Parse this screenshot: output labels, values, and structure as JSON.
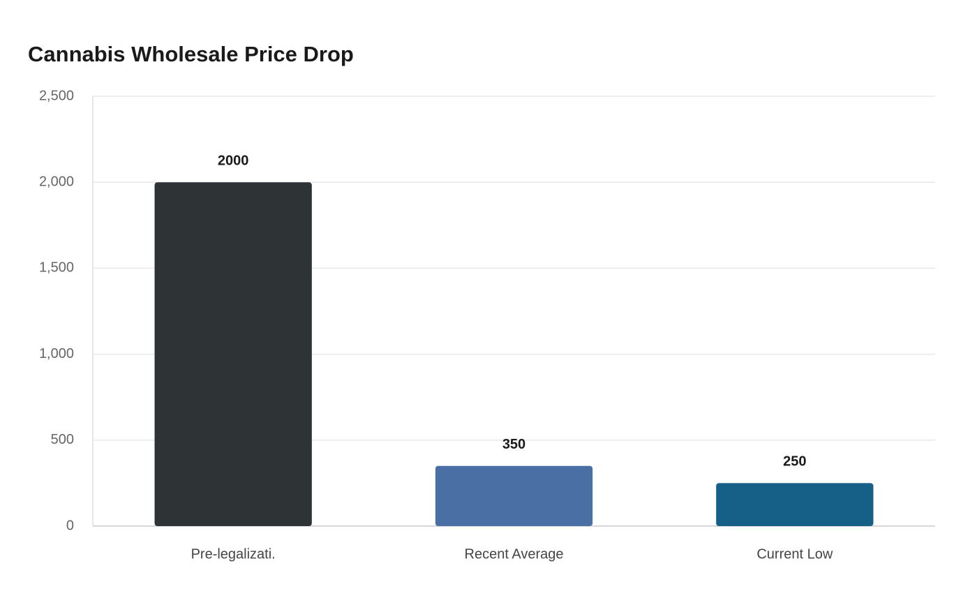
{
  "chart_data": {
    "type": "bar",
    "title": "Cannabis Wholesale Price Drop",
    "categories": [
      "Pre-legalizati.",
      "Recent Average",
      "Current Low"
    ],
    "values": [
      2000,
      350,
      250
    ],
    "colors": [
      "#2e3436",
      "#4a6fa5",
      "#166088"
    ],
    "ylim": [
      0,
      2500
    ],
    "yticks": [
      0,
      500,
      {
        "value": 1000,
        "label": "1,000"
      },
      {
        "value": 1500,
        "label": "1,500"
      },
      {
        "value": 2000,
        "label": "2,000"
      },
      {
        "value": 2500,
        "label": "2,500"
      }
    ],
    "grid": true
  }
}
